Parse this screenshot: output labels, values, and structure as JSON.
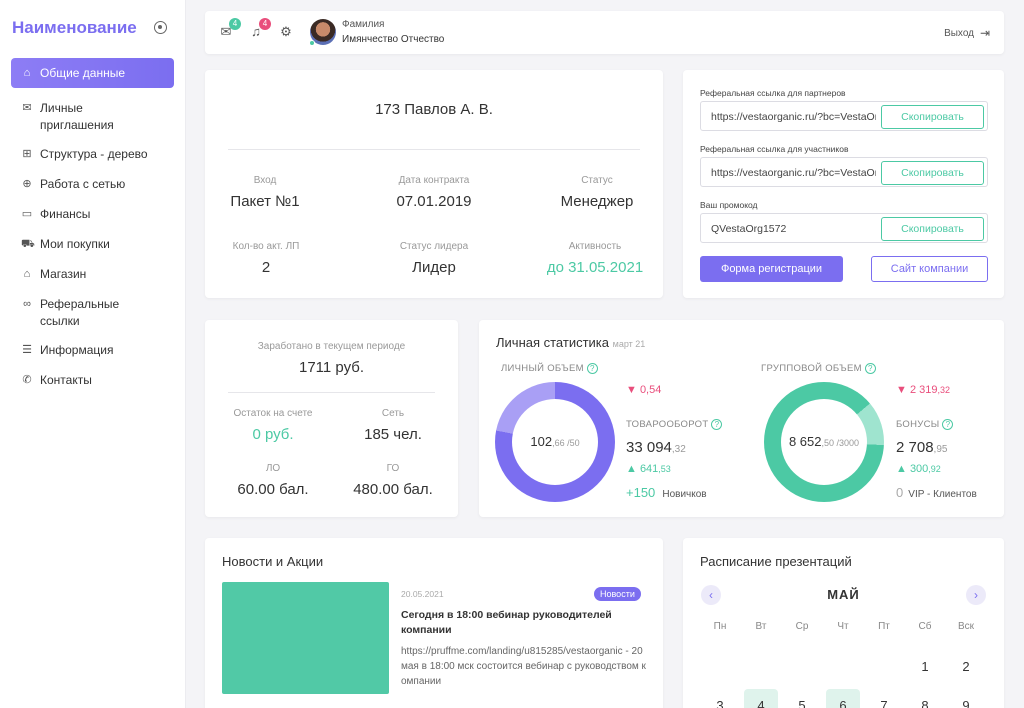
{
  "sidebar": {
    "title": "Наименование",
    "items": [
      {
        "label": "Общие данные",
        "icon": "home-icon"
      },
      {
        "label": "Личные приглашения",
        "icon": "mail-open-icon"
      },
      {
        "label": "Структура - дерево",
        "icon": "tree-icon"
      },
      {
        "label": "Работа с сетью",
        "icon": "globe-icon"
      },
      {
        "label": "Финансы",
        "icon": "card-icon"
      },
      {
        "label": "Мои покупки",
        "icon": "cart-icon"
      },
      {
        "label": "Магазин",
        "icon": "shop-icon"
      },
      {
        "label": "Реферальные ссылки",
        "icon": "link-icon"
      },
      {
        "label": "Информация",
        "icon": "document-icon"
      },
      {
        "label": "Контакты",
        "icon": "phone-icon"
      }
    ]
  },
  "topbar": {
    "mail_count": "4",
    "notif_count": "4",
    "user_surname": "Фамилия",
    "user_name": "Имянчество Отчество",
    "logout": "Выход"
  },
  "profile": {
    "name": "173 Павлов А.  В.",
    "fields": [
      {
        "label": "Вход",
        "value": "Пакет №1"
      },
      {
        "label": "Дата контракта",
        "value": "07.01.2019"
      },
      {
        "label": "Статус",
        "value": "Менеджер"
      },
      {
        "label": "Кол-во акт. ЛП",
        "value": "2"
      },
      {
        "label": "Статус лидера",
        "value": "Лидер"
      },
      {
        "label": "Активность",
        "value": "до 31.05.2021"
      }
    ]
  },
  "referral": {
    "partners_label": "Реферальная ссылка для партнеров",
    "partners_value": "https://vestaorganic.ru/?bc=VestaOrg",
    "members_label": "Реферальная ссылка для участников",
    "members_value": "https://vestaorganic.ru/?bc=VestaOrg",
    "promo_label": "Ваш промокод",
    "promo_value": "QVestaOrg1572",
    "copy_label": "Скопировать",
    "register_btn": "Форма регистрации",
    "site_btn": "Сайт компании"
  },
  "earnings": {
    "period_label": "Заработано в текущем периоде",
    "period_value": "1711 руб.",
    "balance_label": "Остаток на счете",
    "balance_value": "0 руб.",
    "network_label": "Сеть",
    "network_value": "185 чел.",
    "lo_label": "ЛО",
    "lo_value": "60.00 бал.",
    "go_label": "ГО",
    "go_value": "480.00 бал."
  },
  "stats": {
    "title": "Личная статистика",
    "period": "март 21",
    "personal_label": "ЛИЧНЫЙ ОБЪЕМ",
    "personal_main": "102",
    "personal_dec": ",66",
    "personal_of": " /50",
    "personal_delta": "▼ 0,54",
    "turnover_label": "ТОВАРООБОРОТ",
    "turnover_main": "33 094",
    "turnover_dec": ",32",
    "turnover_delta_main": "▲ 641",
    "turnover_delta_dec": ",53",
    "new_count": "+150",
    "new_label": "Новичков",
    "group_label": "ГРУППОВОЙ ОБЪЕМ",
    "group_main": "8 652",
    "group_dec": ",50",
    "group_of": " /3000",
    "group_delta_main": "▼ 2 319",
    "group_delta_dec": ",32",
    "bonus_label": "БОНУСЫ",
    "bonus_main": "2 708",
    "bonus_dec": ",95",
    "bonus_delta_main": "▲ 300",
    "bonus_delta_dec": ",92",
    "vip_count": "0",
    "vip_label": "VIP - Клиентов",
    "personal_fill": 0.78,
    "group_fill": 0.88
  },
  "news": {
    "title": "Новости и Акции",
    "date": "20.05.2021",
    "tag": "Новости",
    "headline": "Сегодня в 18:00 вебинар руководителей компании",
    "body": "https://pruffme.com/landing/u815285/vestaorganic - 20 мая в 18:00 мск состоится вебинар с руководством компании"
  },
  "calendar": {
    "title": "Расписание презентаций",
    "month": "МАЙ",
    "weekdays": [
      "Пн",
      "Вт",
      "Ср",
      "Чт",
      "Пт",
      "Сб",
      "Вск"
    ],
    "row1": [
      "1",
      "2"
    ],
    "row2": [
      "3",
      "4",
      "5",
      "6",
      "7",
      "8",
      "9"
    ]
  },
  "colors": {
    "accent": "#7b6ef0",
    "green": "#4cc9a4",
    "red": "#e94e7c"
  }
}
